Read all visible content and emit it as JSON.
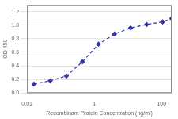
{
  "chart_data": {
    "type": "line",
    "x": [
      0.016,
      0.049,
      0.148,
      0.444,
      1.333,
      4.0,
      12.0,
      36.0,
      108.0,
      200.0
    ],
    "values": [
      0.13,
      0.18,
      0.25,
      0.46,
      0.72,
      0.87,
      0.96,
      1.01,
      1.05,
      1.1
    ],
    "color": "#3333aa",
    "marker": "diamond",
    "line_style": "dashed",
    "xlabel": "Recombinant Protein Concentration (ng/ml)",
    "ylabel": "OD 450",
    "xlim": [
      0.01,
      200
    ],
    "ylim": [
      0.0,
      1.3
    ],
    "xticks": [
      0.01,
      1,
      100
    ],
    "yticks": [
      {
        "value": 0,
        "label": "0.0"
      },
      0.2,
      0.4,
      0.6,
      0.8,
      {
        "value": 1,
        "label": "1.0"
      },
      1.2
    ],
    "log": "x",
    "grid": "y"
  }
}
